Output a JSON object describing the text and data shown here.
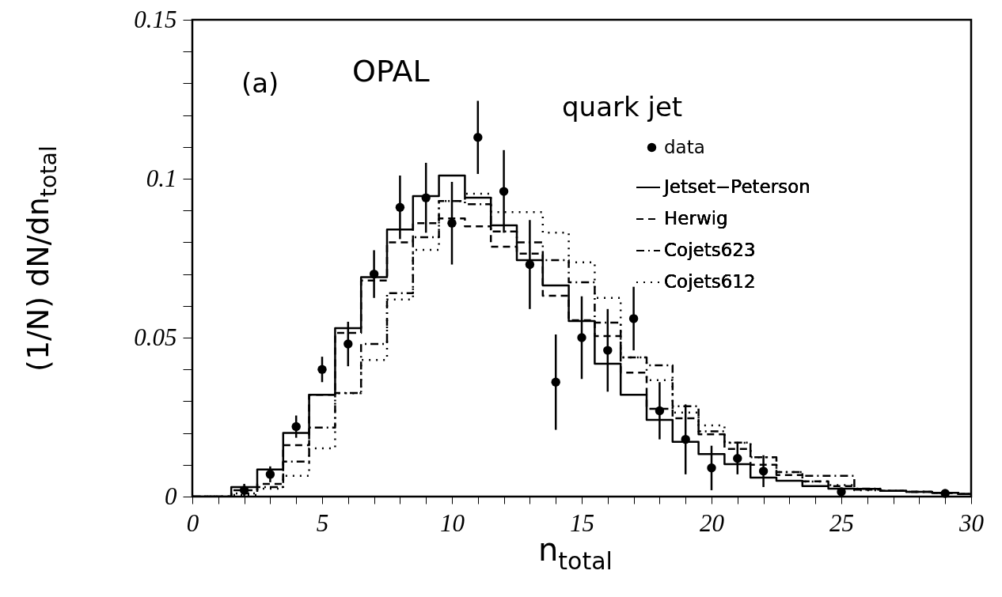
{
  "chart_data": {
    "type": "step",
    "xlabel": "n$_{total}$",
    "ylabel": "(1/N) dN/dn$_{total}$",
    "annotations": [
      "(a)",
      "OPAL",
      "quark jet"
    ],
    "x": [
      0,
      1,
      2,
      3,
      4,
      5,
      6,
      7,
      8,
      9,
      10,
      11,
      12,
      13,
      14,
      15,
      16,
      17,
      18,
      19,
      20,
      21,
      22,
      23,
      24,
      25,
      26,
      27,
      28,
      29,
      30
    ],
    "series": [
      {
        "name": "data",
        "type": "scatter",
        "marker": "circle",
        "color": "#000000",
        "x": [
          2,
          3,
          4,
          5,
          6,
          7,
          8,
          9,
          10,
          11,
          12,
          13,
          14,
          15,
          16,
          17,
          18,
          19,
          20,
          21,
          22,
          25,
          29
        ],
        "values": [
          0.002,
          0.007,
          0.022,
          0.04,
          0.048,
          0.07,
          0.091,
          0.094,
          0.086,
          0.113,
          0.096,
          0.073,
          0.036,
          0.05,
          0.046,
          0.056,
          0.027,
          0.018,
          0.009,
          0.012,
          0.008,
          0.0015,
          0.001
        ],
        "errors": [
          0.002,
          0.0025,
          0.0035,
          0.004,
          0.007,
          0.0075,
          0.01,
          0.011,
          0.013,
          0.0115,
          0.013,
          0.014,
          0.015,
          0.013,
          0.013,
          0.01,
          0.009,
          0.011,
          0.007,
          0.005,
          0.005,
          0.001,
          0.001
        ]
      },
      {
        "name": "Jetset−Peterson",
        "color": "#000000",
        "line_style": "solid",
        "values": [
          0,
          0,
          0.003,
          0.0085,
          0.02,
          0.032,
          0.053,
          0.069,
          0.084,
          0.0945,
          0.101,
          0.094,
          0.0853,
          0.0744,
          0.0664,
          0.0552,
          0.0418,
          0.032,
          0.0241,
          0.0172,
          0.0134,
          0.0102,
          0.006,
          0.005,
          0.0033,
          0.0025,
          0.0024,
          0.0018,
          0.0015,
          0.0012,
          0.0008
        ]
      },
      {
        "name": "Herwig",
        "color": "#000000",
        "line_style": "dashed",
        "values": [
          0,
          0,
          0.002,
          0.004,
          0.0162,
          0.032,
          0.0515,
          0.068,
          0.08,
          0.086,
          0.0875,
          0.085,
          0.0786,
          0.0764,
          0.0632,
          0.0555,
          0.0505,
          0.039,
          0.0276,
          0.0246,
          0.0196,
          0.015,
          0.01,
          0.0068,
          0.0048,
          0.0033,
          0.0022,
          0.0018,
          0.0015,
          0.0012,
          0.0008
        ]
      },
      {
        "name": "Cojets623",
        "color": "#000000",
        "line_style": "dashdot",
        "values": [
          0,
          0,
          0.001,
          0.003,
          0.011,
          0.0217,
          0.0326,
          0.048,
          0.064,
          0.0816,
          0.093,
          0.092,
          0.0834,
          0.08,
          0.0744,
          0.0674,
          0.0547,
          0.0438,
          0.0413,
          0.0284,
          0.0205,
          0.017,
          0.0124,
          0.0077,
          0.0065,
          0.0065,
          0.0025,
          0.0018,
          0.0015,
          0.0012,
          0.0008
        ]
      },
      {
        "name": "Cojets612",
        "color": "#000000",
        "line_style": "dotted",
        "values": [
          0,
          0,
          0.0005,
          0.0025,
          0.0065,
          0.0152,
          0.0325,
          0.043,
          0.062,
          0.0776,
          0.093,
          0.0953,
          0.0895,
          0.0895,
          0.083,
          0.0737,
          0.0625,
          0.0438,
          0.0366,
          0.0264,
          0.0224,
          0.0169,
          0.0124,
          0.0077,
          0.0047,
          0.0036,
          0.002,
          0.0018,
          0.0015,
          0.0012,
          0.0008
        ]
      }
    ],
    "xlim": [
      0,
      30
    ],
    "ylim": [
      0,
      0.15
    ],
    "xticks": [
      0,
      {
        "value": 1,
        "label": null
      },
      {
        "value": 2,
        "label": null
      },
      {
        "value": 3,
        "label": null
      },
      {
        "value": 4,
        "label": null
      },
      5,
      {
        "value": 6,
        "label": null
      },
      {
        "value": 7,
        "label": null
      },
      {
        "value": 8,
        "label": null
      },
      {
        "value": 9,
        "label": null
      },
      10,
      {
        "value": 11,
        "label": null
      },
      {
        "value": 12,
        "label": null
      },
      {
        "value": 13,
        "label": null
      },
      {
        "value": 14,
        "label": null
      },
      15,
      {
        "value": 16,
        "label": null
      },
      {
        "value": 17,
        "label": null
      },
      {
        "value": 18,
        "label": null
      },
      {
        "value": 19,
        "label": null
      },
      20,
      {
        "value": 21,
        "label": null
      },
      {
        "value": 22,
        "label": null
      },
      {
        "value": 23,
        "label": null
      },
      {
        "value": 24,
        "label": null
      },
      25,
      {
        "value": 26,
        "label": null
      },
      {
        "value": 27,
        "label": null
      },
      {
        "value": 28,
        "label": null
      },
      {
        "value": 29,
        "label": null
      },
      30
    ],
    "yticks": [
      0,
      {
        "value": 0.01,
        "label": null
      },
      {
        "value": 0.02,
        "label": null
      },
      {
        "value": 0.03,
        "label": null
      },
      {
        "value": 0.04,
        "label": null
      },
      0.05,
      {
        "value": 0.06,
        "label": null
      },
      {
        "value": 0.07,
        "label": null
      },
      {
        "value": 0.08,
        "label": null
      },
      {
        "value": 0.09,
        "label": null
      },
      0.1,
      {
        "value": 0.11,
        "label": null
      },
      {
        "value": 0.12,
        "label": null
      },
      {
        "value": 0.13,
        "label": null
      },
      {
        "value": 0.14,
        "label": null
      },
      0.15
    ],
    "grid": false,
    "legend": "top right"
  }
}
